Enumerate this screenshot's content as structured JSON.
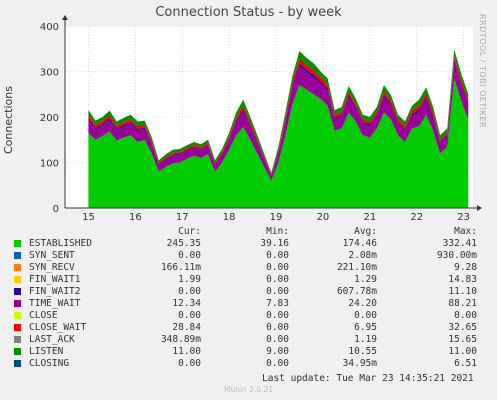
{
  "title": "Connection Status - by week",
  "side_text": "RRDTOOL / TOBI OETIKER",
  "chart_data": {
    "type": "area",
    "title": "Connection Status - by week",
    "ylabel": "Connections",
    "ylim": [
      0,
      400
    ],
    "yticks": [
      0,
      100,
      200,
      300,
      400
    ],
    "xticks": [
      "15",
      "16",
      "17",
      "18",
      "19",
      "20",
      "21",
      "22",
      "23"
    ],
    "grid": true,
    "series": [
      {
        "name": "ESTABLISHED",
        "color": "#00cc00"
      },
      {
        "name": "SYN_SENT",
        "color": "#0066b3"
      },
      {
        "name": "SYN_RECV",
        "color": "#ff8000"
      },
      {
        "name": "FIN_WAIT1",
        "color": "#ffcc00"
      },
      {
        "name": "FIN_WAIT2",
        "color": "#330099"
      },
      {
        "name": "TIME_WAIT",
        "color": "#990099"
      },
      {
        "name": "CLOSE",
        "color": "#ccff00"
      },
      {
        "name": "CLOSE_WAIT",
        "color": "#ff0000"
      },
      {
        "name": "LAST_ACK",
        "color": "#808080"
      },
      {
        "name": "LISTEN",
        "color": "#008f00"
      },
      {
        "name": "CLOSING",
        "color": "#00487d"
      }
    ],
    "x": [
      0,
      0.15,
      0.3,
      0.45,
      0.6,
      0.75,
      0.9,
      1.05,
      1.2,
      1.35,
      1.5,
      1.65,
      1.8,
      1.95,
      2.1,
      2.25,
      2.4,
      2.55,
      2.7,
      2.85,
      3.0,
      3.15,
      3.3,
      3.45,
      3.6,
      3.75,
      3.9,
      4.05,
      4.2,
      4.35,
      4.5,
      4.65,
      4.8,
      4.95,
      5.1,
      5.25,
      5.4,
      5.55,
      5.7,
      5.85,
      6.0,
      6.15,
      6.3,
      6.45,
      6.6,
      6.75,
      6.9,
      7.05,
      7.2,
      7.35,
      7.5,
      7.65,
      7.8,
      7.95,
      8.1
    ],
    "established": [
      165,
      150,
      158,
      168,
      148,
      155,
      160,
      145,
      150,
      120,
      80,
      90,
      98,
      100,
      108,
      115,
      110,
      118,
      80,
      100,
      128,
      160,
      178,
      150,
      120,
      90,
      60,
      100,
      160,
      230,
      270,
      260,
      250,
      240,
      225,
      170,
      175,
      210,
      190,
      160,
      155,
      175,
      210,
      195,
      160,
      145,
      175,
      180,
      205,
      170,
      120,
      135,
      285,
      235,
      195
    ],
    "total": [
      215,
      192,
      200,
      214,
      190,
      198,
      205,
      190,
      192,
      155,
      105,
      118,
      128,
      130,
      138,
      145,
      140,
      150,
      105,
      130,
      165,
      210,
      238,
      200,
      160,
      118,
      78,
      135,
      210,
      290,
      345,
      330,
      318,
      300,
      285,
      215,
      222,
      268,
      240,
      205,
      200,
      222,
      270,
      248,
      205,
      190,
      225,
      238,
      265,
      222,
      160,
      175,
      348,
      295,
      250
    ],
    "legend_headers": {
      "cur": "Cur:",
      "min": "Min:",
      "avg": "Avg:",
      "max": "Max:"
    },
    "legend_rows": [
      {
        "name": "ESTABLISHED",
        "color": "#00cc00",
        "cur": "245.35",
        "min": "39.16",
        "avg": "174.46",
        "max": "332.41"
      },
      {
        "name": "SYN_SENT",
        "color": "#0066b3",
        "cur": "0.00",
        "min": "0.00",
        "avg": "2.08m",
        "max": "930.00m"
      },
      {
        "name": "SYN_RECV",
        "color": "#ff8000",
        "cur": "166.11m",
        "min": "0.00",
        "avg": "221.10m",
        "max": "9.28"
      },
      {
        "name": "FIN_WAIT1",
        "color": "#ffcc00",
        "cur": "1.99",
        "min": "0.00",
        "avg": "1.29",
        "max": "14.83"
      },
      {
        "name": "FIN_WAIT2",
        "color": "#330099",
        "cur": "0.00",
        "min": "0.00",
        "avg": "607.78m",
        "max": "11.10"
      },
      {
        "name": "TIME_WAIT",
        "color": "#990099",
        "cur": "12.34",
        "min": "7.83",
        "avg": "24.20",
        "max": "88.21"
      },
      {
        "name": "CLOSE",
        "color": "#ccff00",
        "cur": "0.00",
        "min": "0.00",
        "avg": "0.00",
        "max": "0.00"
      },
      {
        "name": "CLOSE_WAIT",
        "color": "#ff0000",
        "cur": "28.84",
        "min": "0.00",
        "avg": "6.95",
        "max": "32.65"
      },
      {
        "name": "LAST_ACK",
        "color": "#808080",
        "cur": "348.89m",
        "min": "0.00",
        "avg": "1.19",
        "max": "15.65"
      },
      {
        "name": "LISTEN",
        "color": "#008f00",
        "cur": "11.00",
        "min": "9.00",
        "avg": "10.55",
        "max": "11.00"
      },
      {
        "name": "CLOSING",
        "color": "#00487d",
        "cur": "0.00",
        "min": "0.00",
        "avg": "34.95m",
        "max": "6.51"
      }
    ]
  },
  "last_update": "Last update:  Tue Mar 23 14:35:21 2021",
  "footer": "Munin 2.0.21"
}
